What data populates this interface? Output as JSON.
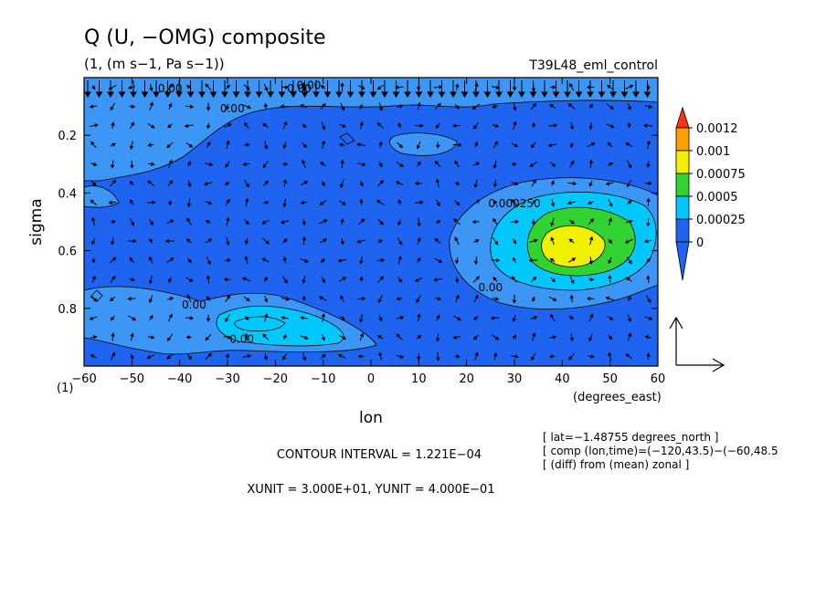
{
  "header": {
    "title": "Q (U, −OMG) composite",
    "units": "(1, (m s−1, Pa s−1))",
    "experiment": "T39L48_eml_control"
  },
  "footer": {
    "contour_interval": "CONTOUR INTERVAL = 1.221E−04",
    "units_line": "XUNIT = 3.000E+01, YUNIT = 4.000E−01",
    "info": [
      "[ lat=−1.48755 degrees_north ]",
      "[ comp (lon,time)=(−120,43.5)−(−60,48.5",
      "[ (diff) from (mean) zonal ]"
    ]
  },
  "chart_data": {
    "type": "heatmap",
    "title": "Q (U, −OMG) composite",
    "subtitle": "(1, (m s−1, Pa s−1))",
    "xlabel": "lon",
    "xunit_label": "(degrees_east)",
    "ylabel": "sigma",
    "yunit_label": "(1)",
    "xlim": [
      -60,
      60
    ],
    "ylim": [
      1.0,
      0.0
    ],
    "x_ticks": [
      "−60",
      "−50",
      "−40",
      "−30",
      "−20",
      "−10",
      "0",
      "10",
      "20",
      "30",
      "40",
      "50",
      "60"
    ],
    "x_tick_values": [
      -60,
      -50,
      -40,
      -30,
      -20,
      -10,
      0,
      10,
      20,
      30,
      40,
      50,
      60
    ],
    "y_ticks": [
      "0.2",
      "0.4",
      "0.6",
      "0.8"
    ],
    "y_tick_values": [
      0.2,
      0.4,
      0.6,
      0.8
    ],
    "colorbar": {
      "labels": [
        "0.0012",
        "0.001",
        "0.00075",
        "0.0005",
        "0.00025",
        "0"
      ],
      "levels": [
        0,
        0.00025,
        0.0005,
        0.00075,
        0.001,
        0.0012
      ],
      "colors": [
        "#1e64f0",
        "#00c8ff",
        "#32d232",
        "#f0f000",
        "#ffa000",
        "#ff3218"
      ],
      "under_color": "#1e64f0",
      "over_color": "#ff3218"
    },
    "field_colors": {
      "background": "#1e64f0",
      "level1": "#3c96f5",
      "level2": "#00c8ff",
      "level3": "#32d232",
      "level4": "#f0f000"
    },
    "features": [
      {
        "lon": 42,
        "sigma": 0.57,
        "value": 0.0009
      },
      {
        "lon": -24,
        "sigma": 0.85,
        "value": 0.0004
      }
    ],
    "contour_labels": [
      "0.00",
      "0.00",
      "0.00",
      "0.000250",
      "0.00",
      "0.00",
      "0.00",
      "0.00"
    ],
    "contour_label_positions": [
      {
        "lon": -13,
        "sigma": 0.04
      },
      {
        "lon": -29,
        "sigma": 0.12
      },
      {
        "lon": -42,
        "sigma": 0.05
      },
      {
        "lon": 30,
        "sigma": 0.45
      },
      {
        "lon": 25,
        "sigma": 0.74
      },
      {
        "lon": -37,
        "sigma": 0.8
      },
      {
        "lon": -27,
        "sigma": 0.92
      },
      {
        "lon": -15,
        "sigma": 0.05
      }
    ],
    "vector_reference": {
      "x": "XUNIT = 3.000E+01",
      "y": "YUNIT = 4.000E−01"
    }
  }
}
